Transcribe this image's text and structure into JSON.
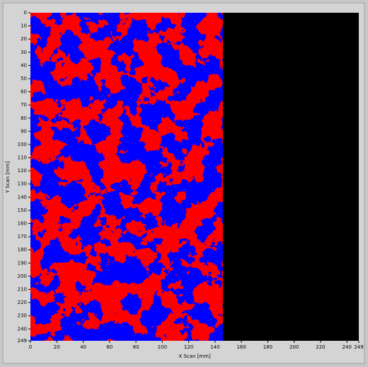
{
  "chart_data": {
    "type": "heatmap",
    "x_label": "X Scan [mm]",
    "y_label": "Y Scan [mm]",
    "xlim": [
      0,
      249
    ],
    "xticks": [
      0,
      20,
      40,
      60,
      80,
      100,
      120,
      140,
      160,
      180,
      200,
      220,
      240,
      249
    ],
    "ylim": [
      0,
      249
    ],
    "y_inverted": true,
    "yticks": [
      0,
      10,
      20,
      30,
      40,
      50,
      60,
      70,
      80,
      90,
      100,
      110,
      120,
      130,
      140,
      150,
      160,
      170,
      180,
      190,
      200,
      210,
      220,
      230,
      240,
      249
    ]
  }
}
